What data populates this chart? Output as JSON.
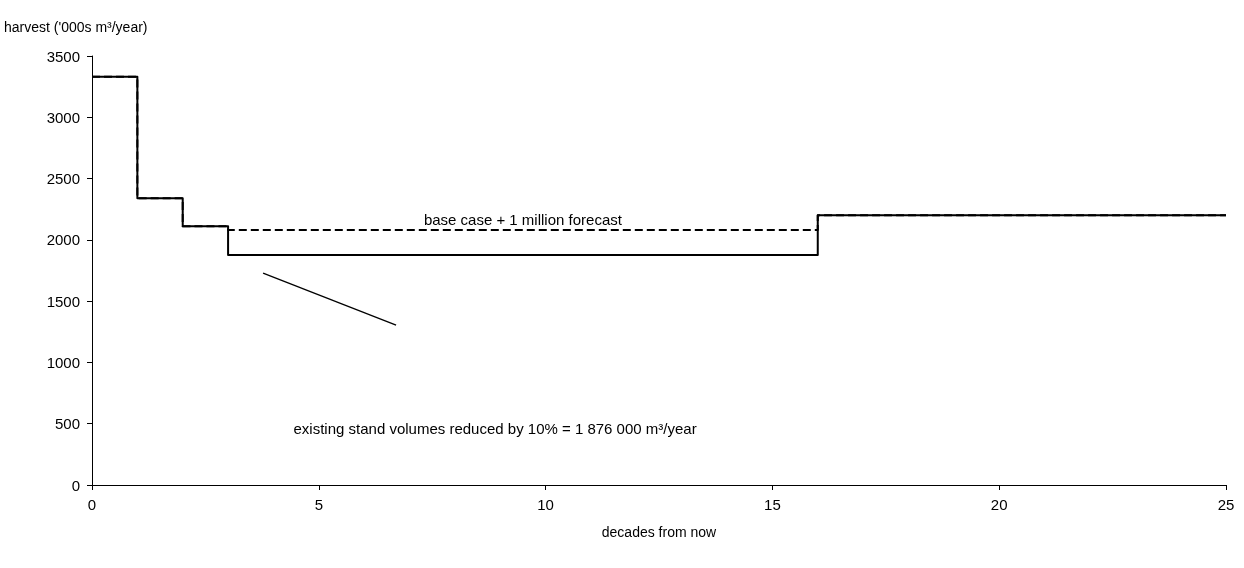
{
  "chart_data": {
    "type": "step",
    "xlabel": "decades from now",
    "ylabel": "harvest ('000s m³/year)",
    "x": [
      0,
      1,
      2,
      3,
      16,
      25
    ],
    "series": [
      {
        "color": "#000000",
        "line_style": "solid",
        "values": [
          3330,
          2340,
          2110,
          1876,
          2200,
          2200
        ]
      },
      {
        "color": "#000000",
        "line_style": "dashed",
        "values": [
          3330,
          2340,
          2110,
          2080,
          2200,
          2200
        ]
      }
    ],
    "xlim": [
      0,
      25
    ],
    "xticks": [
      0,
      5,
      10,
      15,
      20,
      25
    ],
    "ylim": [
      0,
      3500
    ],
    "yticks": [
      0,
      500,
      1000,
      1500,
      2000,
      2500,
      3000,
      3500
    ],
    "grid": false,
    "marker": "none",
    "annotations": [
      {
        "text": "base case + 1 million forecast",
        "x": 9.5,
        "y": 2080
      },
      "existing stand volumes reduced by 10% = 1 876 000 m³/year"
    ]
  }
}
